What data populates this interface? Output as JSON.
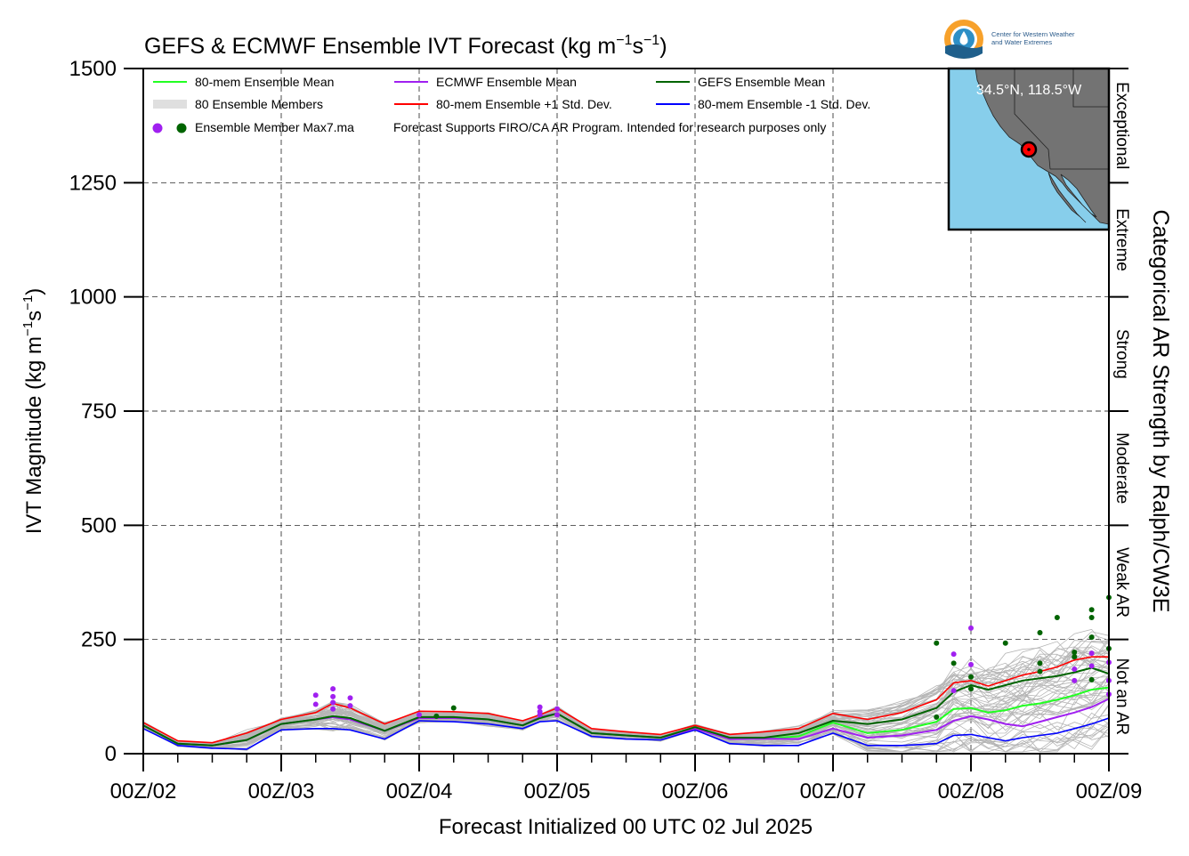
{
  "chart_data": {
    "type": "line",
    "title_main": "GEFS & ECMWF Ensemble IVT Forecast (kg m",
    "title_exp1": "−1",
    "title_mid": "s",
    "title_exp2": "−1",
    "title_end": ")",
    "ylabel_main": "IVT Magnitude (kg m",
    "ylabel_exp1": "−1",
    "ylabel_mid": "s",
    "ylabel_exp2": "−1",
    "ylabel_end": ")",
    "xlabel": "Forecast Initialized 00 UTC 02 Jul 2025",
    "right_label": "Categorical AR Strength by Ralph/CW3E",
    "ylim": [
      0,
      1500
    ],
    "y_ticks": [
      0,
      250,
      500,
      750,
      1000,
      1250,
      1500
    ],
    "y_tick_labels": [
      "0",
      "250",
      "500",
      "750",
      "1000",
      "1250",
      "1500"
    ],
    "x_range_days": [
      2,
      9
    ],
    "x_tick_labels": [
      "00Z/02",
      "00Z/03",
      "00Z/04",
      "00Z/05",
      "00Z/06",
      "00Z/07",
      "00Z/08",
      "00Z/09"
    ],
    "x_tick_days": [
      2,
      3,
      4,
      5,
      6,
      7,
      8,
      9
    ],
    "grid": true,
    "categories_ar": [
      {
        "label": "Not an AR",
        "range": [
          0,
          250
        ]
      },
      {
        "label": "Weak AR",
        "range": [
          250,
          500
        ]
      },
      {
        "label": "Moderate",
        "range": [
          500,
          750
        ]
      },
      {
        "label": "Strong",
        "range": [
          750,
          1000
        ]
      },
      {
        "label": "Extreme",
        "range": [
          1000,
          1250
        ]
      },
      {
        "label": "Exceptional",
        "range": [
          1250,
          1500
        ]
      }
    ],
    "legend": {
      "placement": "top-left",
      "entries": [
        {
          "label": "80-mem Ensemble Mean",
          "color": "#22ff22"
        },
        {
          "label": "ECMWF Ensemble Mean",
          "color": "#a020f0"
        },
        {
          "label": "GEFS Ensemble Mean",
          "color": "#006400"
        },
        {
          "label": "80 Ensemble Members",
          "color": "#aaaaaa"
        },
        {
          "label": "80-mem Ensemble +1 Std. Dev.",
          "color": "#ff0000"
        },
        {
          "label": "80-mem Ensemble -1 Std. Dev.",
          "color": "#0000ff"
        }
      ],
      "max_label": "Ensemble Member Max7.ma",
      "note": "Forecast Supports FIRO/CA AR Program. Intended for research purposes only"
    },
    "inset_map": {
      "location_label": "34.5°N, 118.5°W",
      "ocean_color": "#87ceeb",
      "land_color": "#808080",
      "marker_color": "#ff0000"
    },
    "logo_text_line1": "Center for Western Weather",
    "logo_text_line2": "and Water Extremes",
    "x": [
      2.0,
      2.25,
      2.5,
      2.75,
      3.0,
      3.25,
      3.375,
      3.5,
      3.75,
      4.0,
      4.25,
      4.5,
      4.75,
      4.875,
      5.0,
      5.25,
      5.5,
      5.75,
      6.0,
      6.25,
      6.5,
      6.75,
      7.0,
      7.25,
      7.5,
      7.75,
      7.875,
      8.0,
      8.125,
      8.25,
      8.375,
      8.5,
      8.625,
      8.75,
      8.875,
      9.0
    ],
    "series": [
      {
        "name": "80-mem Ensemble +1 Std. Dev.",
        "color": "#ff0000",
        "width": 1.6,
        "values": [
          68,
          28,
          24,
          45,
          75,
          90,
          110,
          100,
          65,
          93,
          92,
          88,
          72,
          85,
          100,
          55,
          48,
          42,
          62,
          42,
          48,
          55,
          88,
          75,
          90,
          118,
          155,
          160,
          148,
          160,
          172,
          180,
          190,
          205,
          212,
          212
        ]
      },
      {
        "name": "-1 Std. Dev.",
        "color": "#0000ff",
        "width": 1.6,
        "values": [
          55,
          18,
          12,
          10,
          52,
          55,
          55,
          52,
          32,
          72,
          70,
          65,
          55,
          70,
          72,
          38,
          32,
          30,
          52,
          22,
          18,
          18,
          45,
          18,
          18,
          22,
          40,
          42,
          35,
          28,
          35,
          40,
          45,
          55,
          65,
          78
        ]
      },
      {
        "name": "80-mem Ensemble Mean",
        "color": "#22ff22",
        "width": 2.0,
        "values": [
          62,
          22,
          18,
          30,
          65,
          75,
          82,
          78,
          50,
          80,
          80,
          75,
          62,
          78,
          88,
          45,
          40,
          35,
          58,
          32,
          33,
          38,
          68,
          45,
          52,
          70,
          98,
          100,
          90,
          95,
          105,
          110,
          118,
          128,
          140,
          145
        ]
      },
      {
        "name": "ECMWF Ensemble Mean",
        "color": "#a020f0",
        "width": 2.0,
        "values": [
          62,
          22,
          18,
          30,
          65,
          75,
          80,
          75,
          50,
          78,
          78,
          75,
          62,
          80,
          88,
          45,
          40,
          35,
          55,
          32,
          33,
          32,
          55,
          35,
          40,
          52,
          72,
          82,
          75,
          65,
          60,
          70,
          80,
          90,
          102,
          120
        ]
      },
      {
        "name": "GEFS Ensemble Mean",
        "color": "#006400",
        "width": 2.0,
        "values": [
          62,
          22,
          18,
          30,
          65,
          75,
          82,
          78,
          50,
          80,
          80,
          75,
          62,
          78,
          88,
          45,
          40,
          35,
          58,
          35,
          35,
          45,
          72,
          65,
          75,
          100,
          135,
          150,
          140,
          150,
          160,
          165,
          170,
          178,
          188,
          175
        ]
      }
    ],
    "max_points_ecmwf": [
      {
        "x": 3.25,
        "y": 128
      },
      {
        "x": 3.25,
        "y": 108
      },
      {
        "x": 3.375,
        "y": 142
      },
      {
        "x": 3.375,
        "y": 125
      },
      {
        "x": 3.375,
        "y": 112
      },
      {
        "x": 3.375,
        "y": 98
      },
      {
        "x": 3.5,
        "y": 122
      },
      {
        "x": 3.5,
        "y": 105
      },
      {
        "x": 4.0,
        "y": 85
      },
      {
        "x": 4.875,
        "y": 102
      },
      {
        "x": 4.875,
        "y": 92
      },
      {
        "x": 4.875,
        "y": 85
      },
      {
        "x": 5.0,
        "y": 98
      },
      {
        "x": 5.0,
        "y": 85
      },
      {
        "x": 7.875,
        "y": 218
      },
      {
        "x": 7.875,
        "y": 138
      },
      {
        "x": 8.0,
        "y": 275
      },
      {
        "x": 8.0,
        "y": 195
      },
      {
        "x": 8.75,
        "y": 185
      },
      {
        "x": 8.75,
        "y": 160
      },
      {
        "x": 8.875,
        "y": 220
      },
      {
        "x": 8.875,
        "y": 192
      },
      {
        "x": 9.0,
        "y": 200
      },
      {
        "x": 9.0,
        "y": 160
      },
      {
        "x": 9.0,
        "y": 130
      }
    ],
    "max_points_gefs": [
      {
        "x": 4.125,
        "y": 82
      },
      {
        "x": 4.25,
        "y": 100
      },
      {
        "x": 7.75,
        "y": 242
      },
      {
        "x": 7.75,
        "y": 80
      },
      {
        "x": 7.875,
        "y": 198
      },
      {
        "x": 8.0,
        "y": 168
      },
      {
        "x": 8.0,
        "y": 142
      },
      {
        "x": 8.25,
        "y": 242
      },
      {
        "x": 8.5,
        "y": 265
      },
      {
        "x": 8.5,
        "y": 198
      },
      {
        "x": 8.5,
        "y": 180
      },
      {
        "x": 8.625,
        "y": 298
      },
      {
        "x": 8.75,
        "y": 222
      },
      {
        "x": 8.75,
        "y": 212
      },
      {
        "x": 8.875,
        "y": 315
      },
      {
        "x": 8.875,
        "y": 298
      },
      {
        "x": 8.875,
        "y": 255
      },
      {
        "x": 8.875,
        "y": 162
      },
      {
        "x": 9.0,
        "y": 342
      },
      {
        "x": 9.0,
        "y": 230
      }
    ]
  }
}
